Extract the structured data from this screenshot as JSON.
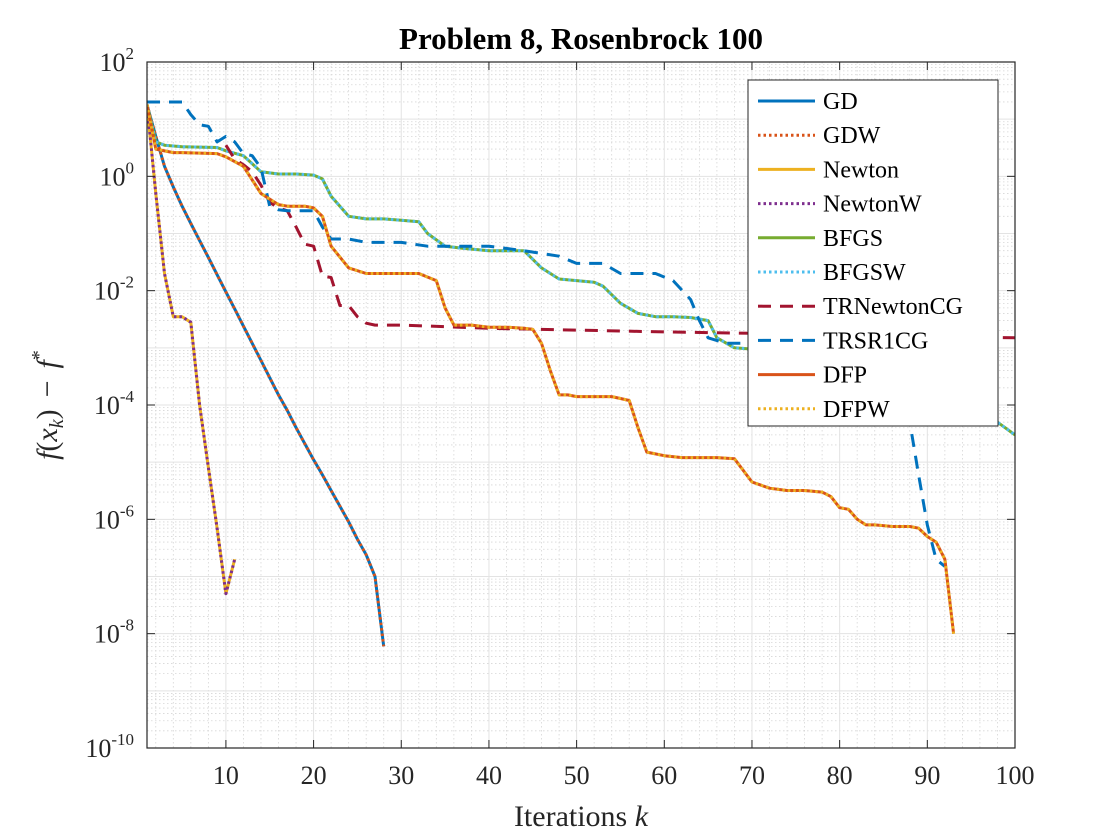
{
  "chart_data": {
    "type": "line",
    "title": "Problem 8, Rosenbrock 100",
    "xlabel": "Iterations k",
    "ylabel": "f(x_k) − f*",
    "ylabel_parts": {
      "f": "f",
      "open": "(",
      "x": "x",
      "sub": "k",
      "close": ")",
      "minus": "−",
      "fstar": "f",
      "star": "*"
    },
    "xlabel_parts": {
      "text": "Iterations ",
      "var": "k"
    },
    "xscale": "linear",
    "yscale": "log",
    "xlim": [
      1,
      100
    ],
    "ylim": [
      1e-10,
      100
    ],
    "grid": true,
    "minor_grid": true,
    "legend_location": "top-right",
    "x_ticks": [
      10,
      20,
      30,
      40,
      50,
      60,
      70,
      80,
      90,
      100
    ],
    "x_tick_labels": [
      "10",
      "20",
      "30",
      "40",
      "50",
      "60",
      "70",
      "80",
      "90",
      "100"
    ],
    "y_ticks": [
      {
        "value": 100,
        "base": "10",
        "exp": "2"
      },
      {
        "value": 1,
        "base": "10",
        "exp": "0"
      },
      {
        "value": 0.01,
        "base": "10",
        "exp": "-2"
      },
      {
        "value": 0.0001,
        "base": "10",
        "exp": "-4"
      },
      {
        "value": 1e-06,
        "base": "10",
        "exp": "-6"
      },
      {
        "value": 1e-08,
        "base": "10",
        "exp": "-8"
      },
      {
        "value": 1e-10,
        "base": "10",
        "exp": "-10"
      }
    ],
    "series": [
      {
        "name": "GD",
        "color": "#0072BD",
        "style": "solid",
        "x": [
          1,
          2,
          3,
          4,
          5,
          6,
          7,
          8,
          9,
          10,
          11,
          12,
          13,
          14,
          15,
          16,
          17,
          18,
          19,
          20,
          21,
          22,
          23,
          24,
          25,
          26,
          27,
          28
        ],
        "y": [
          18,
          5,
          1.5,
          0.65,
          0.3,
          0.15,
          0.075,
          0.038,
          0.019,
          0.0095,
          0.0048,
          0.0024,
          0.0012,
          0.0006,
          0.0003,
          0.00015,
          8e-05,
          4e-05,
          2.1e-05,
          1.1e-05,
          6e-06,
          3.2e-06,
          1.7e-06,
          9e-07,
          4.5e-07,
          2.4e-07,
          1e-07,
          6e-09
        ]
      },
      {
        "name": "GDW",
        "color": "#D95319",
        "style": "dotted",
        "x": [
          1,
          2,
          3,
          4,
          5,
          6,
          7,
          8,
          9,
          10,
          11,
          12,
          13,
          14,
          15,
          16,
          17,
          18,
          19,
          20,
          21,
          22,
          23,
          24,
          25,
          26,
          27,
          28
        ],
        "y": [
          18,
          5,
          1.5,
          0.65,
          0.3,
          0.15,
          0.075,
          0.038,
          0.019,
          0.0095,
          0.0048,
          0.0024,
          0.0012,
          0.0006,
          0.0003,
          0.00015,
          8e-05,
          4e-05,
          2.1e-05,
          1.1e-05,
          6e-06,
          3.2e-06,
          1.7e-06,
          9e-07,
          4.5e-07,
          2.4e-07,
          1e-07,
          6e-09
        ]
      },
      {
        "name": "Newton",
        "color": "#EDB120",
        "style": "solid",
        "x": [
          1,
          2,
          3,
          4,
          5,
          6,
          7,
          8,
          9,
          10,
          11
        ],
        "y": [
          18,
          0.5,
          0.02,
          0.0035,
          0.0035,
          0.0028,
          0.0001,
          8e-06,
          7e-07,
          5e-08,
          2e-07
        ]
      },
      {
        "name": "NewtonW",
        "color": "#7E2F8E",
        "style": "dotted",
        "x": [
          1,
          2,
          3,
          4,
          5,
          6,
          7,
          8,
          9,
          10,
          11
        ],
        "y": [
          18,
          0.5,
          0.02,
          0.0035,
          0.0035,
          0.0028,
          0.0001,
          8e-06,
          7e-07,
          5e-08,
          2e-07
        ]
      },
      {
        "name": "BFGS",
        "color": "#77AC30",
        "style": "solid",
        "x": [
          1,
          2,
          3,
          5,
          9,
          10,
          12,
          14,
          16,
          18,
          20,
          21,
          22,
          24,
          26,
          28,
          30,
          32,
          33,
          35,
          37,
          40,
          44,
          46,
          48,
          50,
          52,
          53,
          55,
          57,
          59,
          61,
          63,
          65,
          66,
          68,
          70,
          72,
          74,
          76,
          78,
          80,
          82,
          84,
          86,
          88,
          90,
          92,
          94,
          96,
          98,
          100
        ],
        "y": [
          18,
          4,
          3.5,
          3.3,
          3.2,
          2.8,
          2.3,
          1.2,
          1.1,
          1.1,
          1.05,
          0.9,
          0.45,
          0.2,
          0.18,
          0.18,
          0.17,
          0.16,
          0.1,
          0.06,
          0.055,
          0.05,
          0.05,
          0.025,
          0.016,
          0.015,
          0.014,
          0.012,
          0.006,
          0.004,
          0.0035,
          0.0035,
          0.0034,
          0.003,
          0.0015,
          0.001,
          0.00095,
          0.0009,
          0.0009,
          0.00085,
          0.0008,
          0.00078,
          0.00075,
          0.00072,
          0.0007,
          0.00065,
          0.0006,
          0.00055,
          0.0005,
          0.0003,
          5e-05,
          3e-05
        ]
      },
      {
        "name": "BFGSW",
        "color": "#4DBEEE",
        "style": "dotted",
        "x": [
          1,
          2,
          3,
          5,
          9,
          10,
          12,
          14,
          16,
          18,
          20,
          21,
          22,
          24,
          26,
          28,
          30,
          32,
          33,
          35,
          37,
          40,
          44,
          46,
          48,
          50,
          52,
          53,
          55,
          57,
          59,
          61,
          63,
          65,
          66,
          68,
          70,
          72,
          74,
          76,
          78,
          80,
          82,
          84,
          86,
          88,
          90,
          92,
          94,
          96,
          98,
          100
        ],
        "y": [
          18,
          4,
          3.5,
          3.3,
          3.2,
          2.8,
          2.3,
          1.2,
          1.1,
          1.1,
          1.05,
          0.9,
          0.45,
          0.2,
          0.18,
          0.18,
          0.17,
          0.16,
          0.1,
          0.06,
          0.055,
          0.05,
          0.05,
          0.025,
          0.016,
          0.015,
          0.014,
          0.012,
          0.006,
          0.004,
          0.0035,
          0.0035,
          0.0034,
          0.003,
          0.0015,
          0.001,
          0.00095,
          0.0009,
          0.0009,
          0.00085,
          0.0008,
          0.00078,
          0.00075,
          0.00072,
          0.0007,
          0.00065,
          0.0006,
          0.00055,
          0.0005,
          0.0003,
          5e-05,
          3e-05
        ]
      },
      {
        "name": "TRNewtonCG",
        "color": "#A2142F",
        "style": "dashed",
        "x": [
          10,
          11,
          12,
          13,
          14,
          15,
          16,
          17,
          18,
          19,
          20,
          21,
          22,
          23,
          24,
          25,
          26,
          27,
          28,
          30,
          40,
          60,
          80,
          100
        ],
        "y": [
          3.5,
          2,
          1.6,
          1.2,
          0.7,
          0.35,
          0.28,
          0.25,
          0.13,
          0.065,
          0.06,
          0.018,
          0.017,
          0.0055,
          0.0055,
          0.0035,
          0.0027,
          0.0025,
          0.0025,
          0.0025,
          0.0022,
          0.0019,
          0.0017,
          0.0015
        ]
      },
      {
        "name": "TRSR1CG",
        "color": "#0072BD",
        "style": "dashed",
        "x": [
          1,
          5,
          6,
          7,
          8,
          9,
          10,
          11,
          12,
          13,
          14,
          15,
          16,
          17,
          18,
          19,
          20,
          21,
          22,
          24,
          26,
          30,
          33,
          35,
          37,
          40,
          44,
          48,
          50,
          53,
          55,
          59,
          61,
          63,
          64,
          65,
          67,
          70,
          75,
          80,
          85,
          88,
          89,
          90,
          91,
          92
        ],
        "y": [
          20,
          20,
          12,
          8,
          7.5,
          4,
          5,
          4,
          2.5,
          2.3,
          1.4,
          0.3,
          0.26,
          0.25,
          0.25,
          0.25,
          0.25,
          0.13,
          0.08,
          0.08,
          0.07,
          0.07,
          0.06,
          0.06,
          0.06,
          0.06,
          0.05,
          0.04,
          0.03,
          0.03,
          0.02,
          0.02,
          0.015,
          0.007,
          0.003,
          0.0015,
          0.0012,
          0.0012,
          0.0009,
          0.0005,
          0.0002,
          5e-05,
          6e-06,
          8e-07,
          2e-07,
          1.5e-07
        ]
      },
      {
        "name": "DFP",
        "color": "#D95319",
        "style": "solid",
        "x": [
          1,
          2,
          4,
          5,
          9,
          10,
          12,
          14,
          15,
          16,
          17,
          19,
          20,
          21,
          22,
          24,
          26,
          28,
          30,
          32,
          34,
          35,
          36,
          38,
          40,
          42,
          44,
          45,
          46,
          47,
          48,
          49,
          50,
          52,
          54,
          55,
          56,
          57,
          58,
          60,
          62,
          66,
          68,
          70,
          72,
          74,
          76,
          78,
          79,
          80,
          81,
          82,
          83,
          84,
          86,
          88,
          89,
          90,
          91,
          92,
          93
        ],
        "y": [
          18,
          3,
          2.6,
          2.6,
          2.5,
          2.2,
          1.5,
          0.5,
          0.4,
          0.32,
          0.3,
          0.3,
          0.28,
          0.2,
          0.06,
          0.025,
          0.02,
          0.02,
          0.02,
          0.02,
          0.015,
          0.005,
          0.0025,
          0.0025,
          0.0023,
          0.0023,
          0.0022,
          0.0021,
          0.0012,
          0.0004,
          0.00015,
          0.00015,
          0.00014,
          0.00014,
          0.00014,
          0.00013,
          0.00012,
          4e-05,
          1.5e-05,
          1.3e-05,
          1.2e-05,
          1.2e-05,
          1.15e-05,
          4.5e-06,
          3.5e-06,
          3.2e-06,
          3.2e-06,
          3e-06,
          2.5e-06,
          1.6e-06,
          1.5e-06,
          1e-06,
          8e-07,
          8e-07,
          7.5e-07,
          7.5e-07,
          7e-07,
          5e-07,
          4e-07,
          2e-07,
          1e-08
        ]
      },
      {
        "name": "DFPW",
        "color": "#EDB120",
        "style": "dotted",
        "x": [
          1,
          2,
          4,
          5,
          9,
          10,
          12,
          14,
          15,
          16,
          17,
          19,
          20,
          21,
          22,
          24,
          26,
          28,
          30,
          32,
          34,
          35,
          36,
          38,
          40,
          42,
          44,
          45,
          46,
          47,
          48,
          49,
          50,
          52,
          54,
          55,
          56,
          57,
          58,
          60,
          62,
          66,
          68,
          70,
          72,
          74,
          76,
          78,
          79,
          80,
          81,
          82,
          83,
          84,
          86,
          88,
          89,
          90,
          91,
          92,
          93
        ],
        "y": [
          18,
          3,
          2.6,
          2.6,
          2.5,
          2.2,
          1.5,
          0.5,
          0.4,
          0.32,
          0.3,
          0.3,
          0.28,
          0.2,
          0.06,
          0.025,
          0.02,
          0.02,
          0.02,
          0.02,
          0.015,
          0.005,
          0.0025,
          0.0025,
          0.0023,
          0.0023,
          0.0022,
          0.0021,
          0.0012,
          0.0004,
          0.00015,
          0.00015,
          0.00014,
          0.00014,
          0.00014,
          0.00013,
          0.00012,
          4e-05,
          1.5e-05,
          1.3e-05,
          1.2e-05,
          1.2e-05,
          1.15e-05,
          4.5e-06,
          3.5e-06,
          3.2e-06,
          3.2e-06,
          3e-06,
          2.5e-06,
          1.6e-06,
          1.5e-06,
          1e-06,
          8e-07,
          8e-07,
          7.5e-07,
          7.5e-07,
          7e-07,
          5e-07,
          4e-07,
          2e-07,
          1e-08
        ]
      }
    ]
  }
}
